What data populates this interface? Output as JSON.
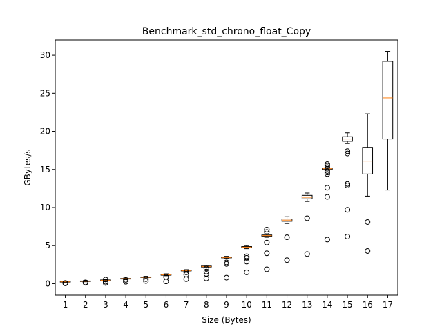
{
  "chart_data": {
    "type": "box",
    "title": "Benchmark_std_chrono_float_Copy",
    "xlabel": "Size (Bytes)",
    "ylabel": "GBytes/s",
    "ylim": [
      -1.5,
      32
    ],
    "yticks": [
      0,
      5,
      10,
      15,
      20,
      25,
      30
    ],
    "grid": false,
    "colors": {
      "box": "#000000",
      "median": "#ff7f0e",
      "frame": "#000000"
    },
    "categories": [
      "1",
      "2",
      "3",
      "4",
      "5",
      "6",
      "7",
      "8",
      "9",
      "10",
      "11",
      "12",
      "13",
      "14",
      "15",
      "16",
      "17"
    ],
    "boxes": [
      {
        "label": "1",
        "whislo": 0.18,
        "q1": 0.22,
        "med": 0.25,
        "q3": 0.28,
        "whishi": 0.32,
        "fliers": [
          0.1,
          0.05
        ]
      },
      {
        "label": "2",
        "whislo": 0.25,
        "q1": 0.3,
        "med": 0.33,
        "q3": 0.36,
        "whishi": 0.42,
        "fliers": [
          0.18,
          0.12
        ]
      },
      {
        "label": "3",
        "whislo": 0.3,
        "q1": 0.4,
        "med": 0.45,
        "q3": 0.5,
        "whishi": 0.55,
        "fliers": [
          0.55,
          0.25,
          0.1
        ]
      },
      {
        "label": "4",
        "whislo": 0.55,
        "q1": 0.62,
        "med": 0.66,
        "q3": 0.7,
        "whishi": 0.76,
        "fliers": [
          0.5,
          0.25
        ]
      },
      {
        "label": "5",
        "whislo": 0.75,
        "q1": 0.82,
        "med": 0.86,
        "q3": 0.9,
        "whishi": 0.98,
        "fliers": [
          0.6,
          0.35
        ]
      },
      {
        "label": "6",
        "whislo": 1.05,
        "q1": 1.12,
        "med": 1.17,
        "q3": 1.22,
        "whishi": 1.3,
        "fliers": [
          0.9,
          0.3
        ]
      },
      {
        "label": "7",
        "whislo": 1.6,
        "q1": 1.68,
        "med": 1.72,
        "q3": 1.78,
        "whishi": 1.85,
        "fliers": [
          1.5,
          1.2,
          0.6
        ]
      },
      {
        "label": "8",
        "whislo": 2.1,
        "q1": 2.2,
        "med": 2.26,
        "q3": 2.32,
        "whishi": 2.42,
        "fliers": [
          2.0,
          1.6,
          1.3,
          0.7
        ]
      },
      {
        "label": "9",
        "whislo": 3.3,
        "q1": 3.4,
        "med": 3.45,
        "q3": 3.52,
        "whishi": 3.6,
        "fliers": [
          2.8,
          2.6,
          0.8
        ]
      },
      {
        "label": "10",
        "whislo": 4.6,
        "q1": 4.72,
        "med": 4.8,
        "q3": 4.88,
        "whishi": 5.0,
        "fliers": [
          3.6,
          3.4,
          2.9,
          1.5
        ]
      },
      {
        "label": "11",
        "whislo": 6.1,
        "q1": 6.25,
        "med": 6.32,
        "q3": 6.4,
        "whishi": 6.55,
        "fliers": [
          7.1,
          6.8,
          5.4,
          4.0,
          1.9
        ]
      },
      {
        "label": "12",
        "whislo": 7.9,
        "q1": 8.2,
        "med": 8.35,
        "q3": 8.5,
        "whishi": 8.8,
        "fliers": [
          6.1,
          3.1
        ]
      },
      {
        "label": "13",
        "whislo": 10.8,
        "q1": 11.15,
        "med": 11.35,
        "q3": 11.6,
        "whishi": 11.9,
        "fliers": [
          8.6,
          3.9
        ]
      },
      {
        "label": "14",
        "whislo": 14.9,
        "q1": 15.0,
        "med": 15.1,
        "q3": 15.2,
        "whishi": 15.35,
        "fliers": [
          15.7,
          15.5,
          15.3,
          14.8,
          14.6,
          14.4,
          12.6,
          11.4,
          5.8
        ]
      },
      {
        "label": "15",
        "whislo": 18.4,
        "q1": 18.7,
        "med": 19.0,
        "q3": 19.3,
        "whishi": 19.8,
        "fliers": [
          17.4,
          17.1,
          13.1,
          12.9,
          9.7,
          6.2
        ]
      },
      {
        "label": "16",
        "whislo": 11.5,
        "q1": 14.4,
        "med": 16.1,
        "q3": 17.9,
        "whishi": 22.3,
        "fliers": [
          8.1,
          4.3
        ]
      },
      {
        "label": "17",
        "whislo": 12.3,
        "q1": 19.0,
        "med": 24.4,
        "q3": 29.2,
        "whishi": 30.5,
        "fliers": []
      }
    ]
  }
}
